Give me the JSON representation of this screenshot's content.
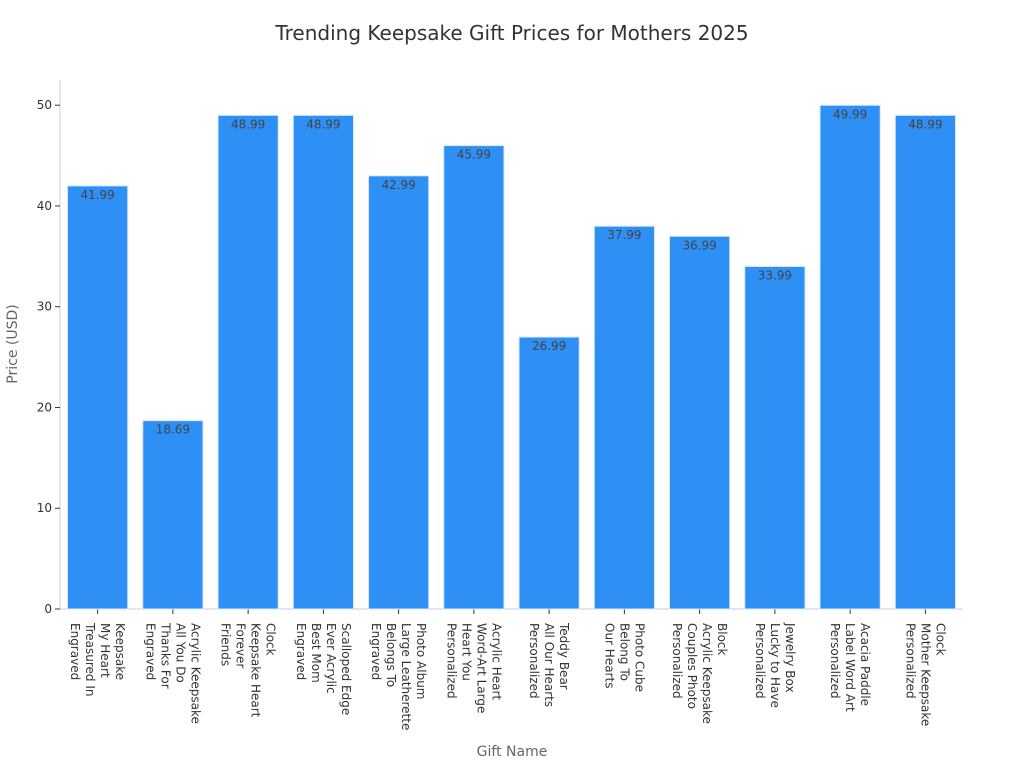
{
  "chart_data": {
    "type": "bar",
    "title": "Trending Keepsake Gift Prices for Mothers 2025",
    "xlabel": "Gift Name",
    "ylabel": "Price (USD)",
    "ylim": [
      0,
      52.5
    ],
    "yticks": [
      0,
      10,
      20,
      30,
      40,
      50
    ],
    "grid": false,
    "bar_color": "#2E8FF5",
    "categories": [
      [
        "Engraved",
        "Treasured In",
        "My Heart",
        "Keepsake"
      ],
      [
        "Engraved",
        "Thanks For",
        "All You Do",
        "Acrylic Keepsake"
      ],
      [
        "Friends",
        "Forever",
        "Keepsake Heart",
        "Clock"
      ],
      [
        "Engraved",
        "Best Mom",
        "Ever Acrylic",
        "Scalloped Edge"
      ],
      [
        "Engraved",
        "Belongs To",
        "Large Leatherette",
        "Photo Album"
      ],
      [
        "Personalized",
        "Heart You",
        "Word-Art Large",
        "Acrylic Heart"
      ],
      [
        "Personalized",
        "All Our Hearts",
        "Teddy Bear"
      ],
      [
        "Our Hearts",
        "Belong To",
        "Photo Cube"
      ],
      [
        "Personalized",
        "Couples Photo",
        "Acrylic Keepsake",
        "Block"
      ],
      [
        "Personalized",
        "Lucky to Have",
        "Jewelry Box"
      ],
      [
        "Personalized",
        "Label Word Art",
        "Acacia Paddle"
      ],
      [
        "Personalized",
        "Mother Keepsake",
        "Clock"
      ]
    ],
    "values": [
      41.99,
      18.69,
      48.99,
      48.99,
      42.99,
      45.99,
      26.99,
      37.99,
      36.99,
      33.99,
      49.99,
      48.99
    ],
    "value_labels": [
      "41.99",
      "18.69",
      "48.99",
      "48.99",
      "42.99",
      "45.99",
      "26.99",
      "37.99",
      "36.99",
      "33.99",
      "49.99",
      "48.99"
    ]
  }
}
